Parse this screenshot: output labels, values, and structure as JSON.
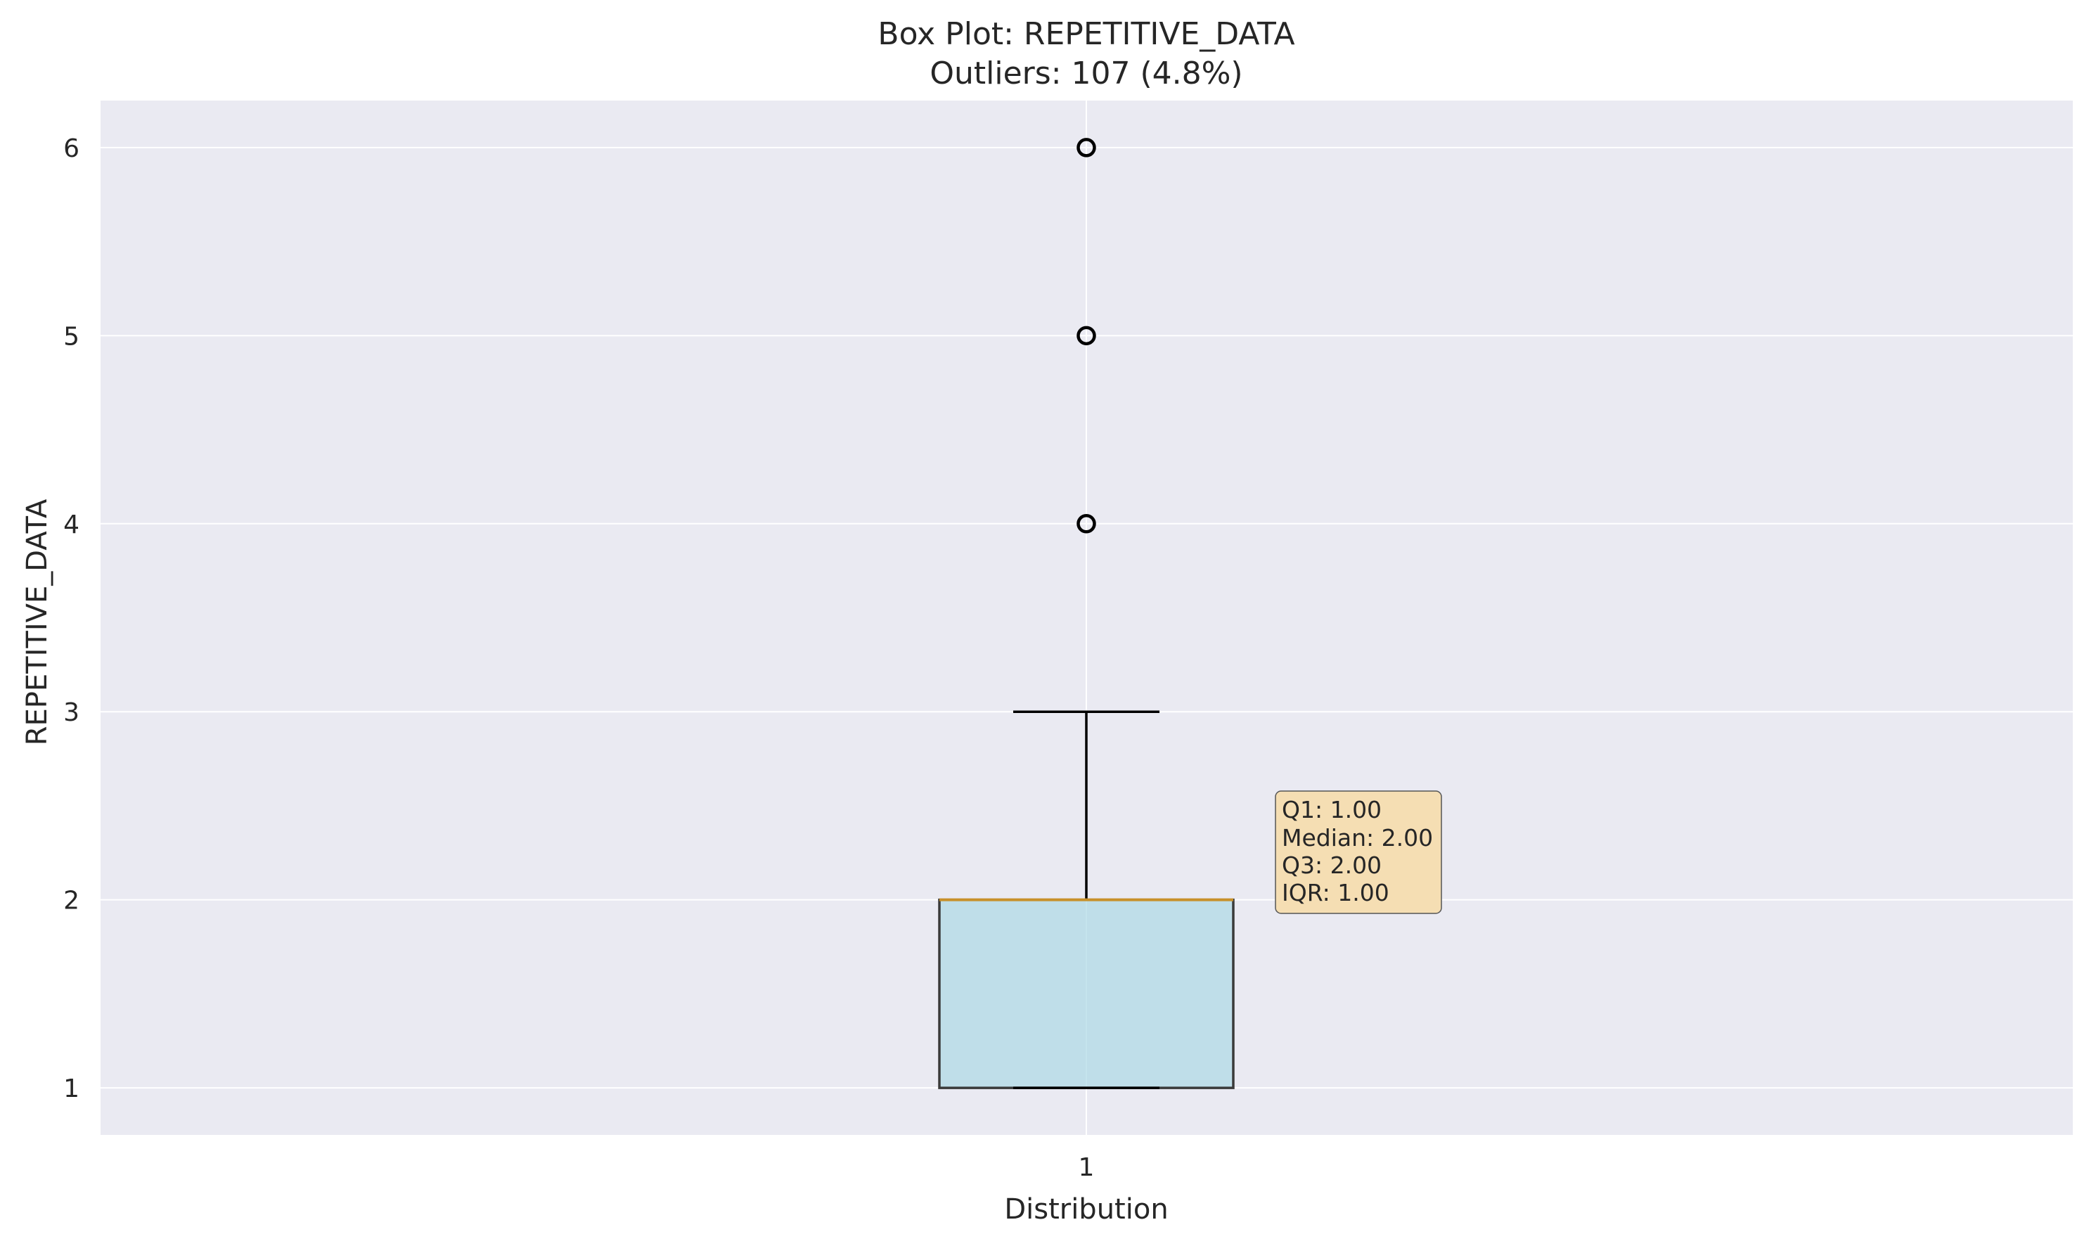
{
  "chart_data": {
    "type": "box",
    "title": "Box Plot: REPETITIVE_DATA",
    "subtitle": "Outliers: 107 (4.8%)",
    "xlabel": "Distribution",
    "ylabel": "REPETITIVE_DATA",
    "categories": [
      "1"
    ],
    "box": {
      "q1": 1.0,
      "median": 2.0,
      "q3": 2.0,
      "whisker_low": 1.0,
      "whisker_high": 3.0
    },
    "outliers": [
      4,
      5,
      6
    ],
    "ylim": [
      0.75,
      6.25
    ],
    "yticks": [
      1,
      2,
      3,
      4,
      5,
      6
    ],
    "grid": true,
    "stats_box": {
      "lines": [
        "Q1: 1.00",
        "Median: 2.00",
        "Q3: 2.00",
        "IQR: 1.00"
      ]
    },
    "colors": {
      "background": "#eaeaf2",
      "box_fill": "#add8e6",
      "box_edge": "#3a3a3a",
      "median_line": "#c8902a",
      "whisker": "#000000",
      "stats_fill": "#f5deb3",
      "grid": "#ffffff"
    }
  }
}
